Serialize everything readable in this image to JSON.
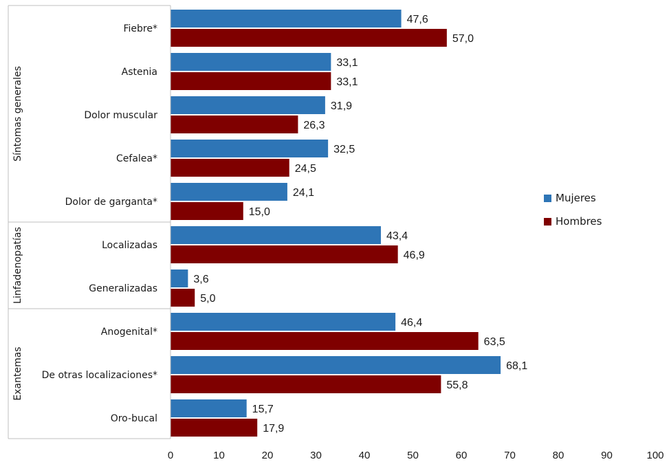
{
  "chart_data": {
    "type": "bar",
    "orientation": "horizontal",
    "groups": [
      {
        "name": "Síntomas generales",
        "categories": [
          "Fiebre*",
          "Astenia",
          "Dolor muscular",
          "Cefalea*",
          "Dolor de garganta*"
        ]
      },
      {
        "name": "Linfadenopatías",
        "categories": [
          "Localizadas",
          "Generalizadas"
        ]
      },
      {
        "name": "Exantemas",
        "categories": [
          "Anogenital*",
          "De otras localizaciones*",
          "Oro-bucal"
        ]
      }
    ],
    "categories": [
      "Fiebre*",
      "Astenia",
      "Dolor muscular",
      "Cefalea*",
      "Dolor de garganta*",
      "Localizadas",
      "Generalizadas",
      "Anogenital*",
      "De otras localizaciones*",
      "Oro-bucal"
    ],
    "series": [
      {
        "name": "Mujeres",
        "color": "#2e75b6",
        "values": [
          47.6,
          33.1,
          31.9,
          32.5,
          24.1,
          43.4,
          3.6,
          46.4,
          68.1,
          15.7
        ],
        "labels": [
          "47,6",
          "33,1",
          "31,9",
          "32,5",
          "24,1",
          "43,4",
          "3,6",
          "46,4",
          "68,1",
          "15,7"
        ]
      },
      {
        "name": "Hombres",
        "color": "#7f0000",
        "values": [
          57.0,
          33.1,
          26.3,
          24.5,
          15.0,
          46.9,
          5.0,
          63.5,
          55.8,
          17.9
        ],
        "labels": [
          "57,0",
          "33,1",
          "26,3",
          "24,5",
          "15,0",
          "46,9",
          "5,0",
          "63,5",
          "55,8",
          "17,9"
        ]
      }
    ],
    "xlim": [
      0,
      100
    ],
    "xticks": [
      0,
      10,
      20,
      30,
      40,
      50,
      60,
      70,
      80,
      90,
      100
    ],
    "title": "",
    "xlabel": "",
    "ylabel": "",
    "grid": false,
    "legend_position": "right"
  },
  "legend": {
    "mujeres": "Mujeres",
    "hombres": "Hombres"
  }
}
